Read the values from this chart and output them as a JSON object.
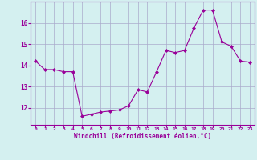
{
  "x": [
    0,
    1,
    2,
    3,
    4,
    5,
    6,
    7,
    8,
    9,
    10,
    11,
    12,
    13,
    14,
    15,
    16,
    17,
    18,
    19,
    20,
    21,
    22,
    23
  ],
  "y": [
    14.2,
    13.8,
    13.8,
    13.7,
    13.7,
    11.6,
    11.7,
    11.8,
    11.85,
    11.9,
    12.1,
    12.85,
    12.75,
    13.7,
    14.7,
    14.6,
    14.7,
    15.75,
    16.6,
    16.6,
    15.1,
    14.9,
    14.2,
    14.15
  ],
  "line_color": "#990099",
  "marker": "D",
  "marker_size": 2,
  "bg_color": "#d4f0f0",
  "grid_color": "#aaaacc",
  "xlabel": "Windchill (Refroidissement éolien,°C)",
  "xlabel_color": "#990099",
  "tick_color": "#990099",
  "ylim": [
    11.2,
    17.0
  ],
  "yticks": [
    12,
    13,
    14,
    15,
    16
  ],
  "xticks": [
    0,
    1,
    2,
    3,
    4,
    5,
    6,
    7,
    8,
    9,
    10,
    11,
    12,
    13,
    14,
    15,
    16,
    17,
    18,
    19,
    20,
    21,
    22,
    23
  ],
  "xtick_labels": [
    "0",
    "1",
    "2",
    "3",
    "4",
    "5",
    "6",
    "7",
    "8",
    "9",
    "10",
    "11",
    "12",
    "13",
    "14",
    "15",
    "16",
    "17",
    "18",
    "19",
    "20",
    "21",
    "22",
    "23"
  ]
}
